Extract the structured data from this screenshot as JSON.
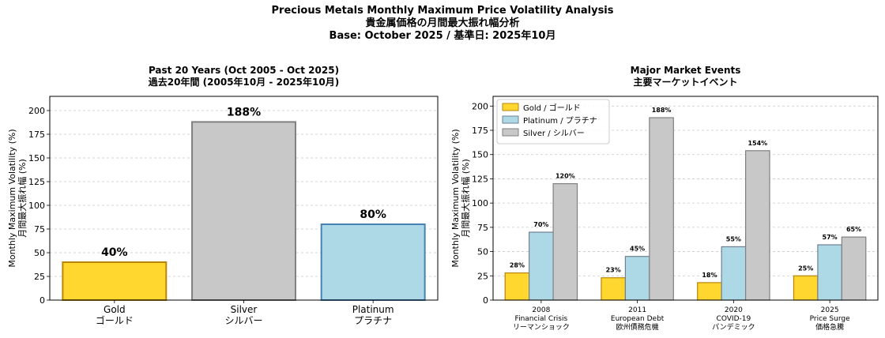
{
  "figure": {
    "title_line1": "Precious Metals Monthly Maximum Price Volatility Analysis",
    "title_line2": "貴金属価格の月間最大振れ幅分析",
    "title_line3": "Base: October 2025 / 基準日: 2025年10月"
  },
  "colors": {
    "gold_fill": "#FFD72E",
    "gold_edge": "#B8860B",
    "silver_fill": "#C8C8C8",
    "silver_edge": "#808080",
    "platinum_fill": "#ADD8E6",
    "platinum_edge": "#4682B4",
    "platinum_edge_right": "#708090"
  },
  "chart_data": [
    {
      "type": "bar",
      "title": "Past 20 Years (Oct 2005 - Oct 2025)",
      "subtitle": "過去20年間 (2005年10月 - 2025年10月)",
      "categories": [
        "Gold\nゴールド",
        "Silver\nシルバー",
        "Platinum\nプラチナ"
      ],
      "values": [
        40,
        188,
        80
      ],
      "value_labels": [
        "40%",
        "188%",
        "80%"
      ],
      "ylabel": "Monthly Maximum Volatility (%)\n月間最大振れ幅 (%)",
      "ylim": [
        0,
        215
      ],
      "yticks": [
        0,
        25,
        50,
        75,
        100,
        125,
        150,
        175,
        200
      ],
      "grid": "y-dashed"
    },
    {
      "type": "bar",
      "title": "Major Market Events",
      "subtitle": "主要マーケットイベント",
      "categories": [
        "2008\nFinancial Crisis\nリーマンショック",
        "2011\nEuropean Debt\n欧州債務危機",
        "2020\nCOVID-19\nパンデミック",
        "2025\nPrice Surge\n価格急騰"
      ],
      "series": [
        {
          "name": "Gold / ゴールド",
          "values": [
            28,
            23,
            18,
            25
          ],
          "labels": [
            "28%",
            "23%",
            "18%",
            "25%"
          ]
        },
        {
          "name": "Platinum / プラチナ",
          "values": [
            70,
            45,
            55,
            57
          ],
          "labels": [
            "70%",
            "45%",
            "55%",
            "57%"
          ]
        },
        {
          "name": "Silver / シルバー",
          "values": [
            120,
            188,
            154,
            65
          ],
          "labels": [
            "120%",
            "188%",
            "154%",
            "65%"
          ]
        }
      ],
      "ylabel": "Monthly Maximum Volatility (%)\n月間最大振れ幅 (%)",
      "ylim": [
        0,
        210
      ],
      "yticks": [
        0,
        25,
        50,
        75,
        100,
        125,
        150,
        175,
        200
      ],
      "legend": "top-left",
      "grid": "y-dashed"
    }
  ]
}
